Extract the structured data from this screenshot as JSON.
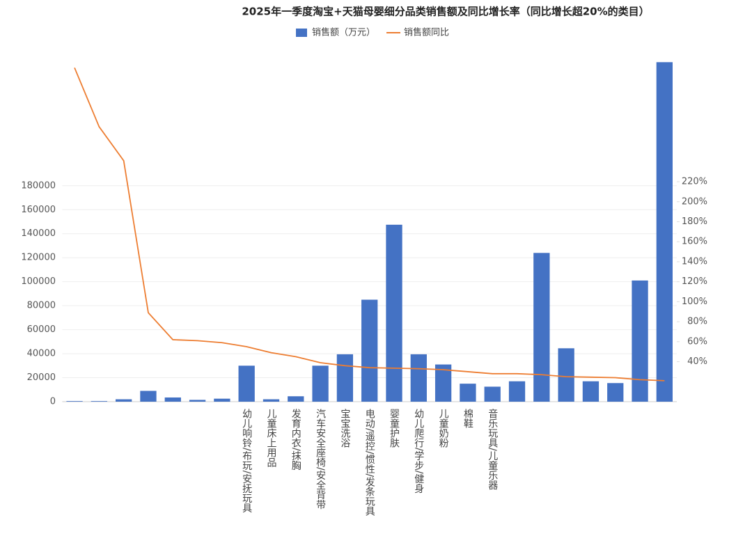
{
  "chart_data": {
    "type": "bar_line",
    "title": "2025年一季度淘宝+天猫母婴细分品类销售额及同比增长率（同比增长超20%的类目）",
    "categories": [
      null,
      null,
      null,
      null,
      null,
      null,
      null,
      "幼儿响铃/布玩/安抚玩具",
      "儿童床上用品",
      "发育内衣/抹胸",
      "汽车安全座椅/安全背带",
      "宝宝洗浴",
      "电动/遥控/惯性/发条玩具",
      "婴童护肤",
      "幼儿爬行/学步/健身",
      "儿童奶粉",
      "棉鞋",
      "音乐玩具/儿童乐器",
      null,
      null,
      null,
      null,
      null,
      null,
      null
    ],
    "series": [
      {
        "name": "销售额（万元）",
        "color": "#4472c4",
        "values": [
          500,
          500,
          2000,
          9000,
          3500,
          1500,
          2500,
          30000,
          2000,
          4500,
          30000,
          39500,
          85000,
          147500,
          39500,
          31000,
          15000,
          12500,
          17000,
          124000,
          44500,
          17000,
          15500,
          101000,
          283000
        ]
      },
      {
        "name": "销售额同比",
        "color": "#ed7d31",
        "axis": "y2",
        "values": [
          334,
          275,
          241,
          89,
          62,
          61,
          59,
          55,
          49,
          45,
          39,
          36,
          34,
          33.5,
          33,
          32,
          30,
          28,
          28,
          27,
          25,
          24.5,
          24,
          22,
          21
        ]
      }
    ],
    "ylim": [
      0,
      300000
    ],
    "yticks": [
      0,
      20000,
      40000,
      60000,
      80000,
      100000,
      120000,
      140000,
      160000,
      180000
    ],
    "y2lim": [
      0,
      360
    ],
    "y2ticks": [
      {
        "value": 40,
        "label": "40%"
      },
      {
        "value": 60,
        "label": "60%"
      },
      {
        "value": 80,
        "label": "80%"
      },
      {
        "value": 100,
        "label": "100%"
      },
      {
        "value": 120,
        "label": "120%"
      },
      {
        "value": 140,
        "label": "140%"
      },
      {
        "value": 160,
        "label": "160%"
      },
      {
        "value": 180,
        "label": "180%"
      },
      {
        "value": 200,
        "label": "200%"
      },
      {
        "value": 220,
        "label": "220%"
      }
    ],
    "grid": true
  }
}
